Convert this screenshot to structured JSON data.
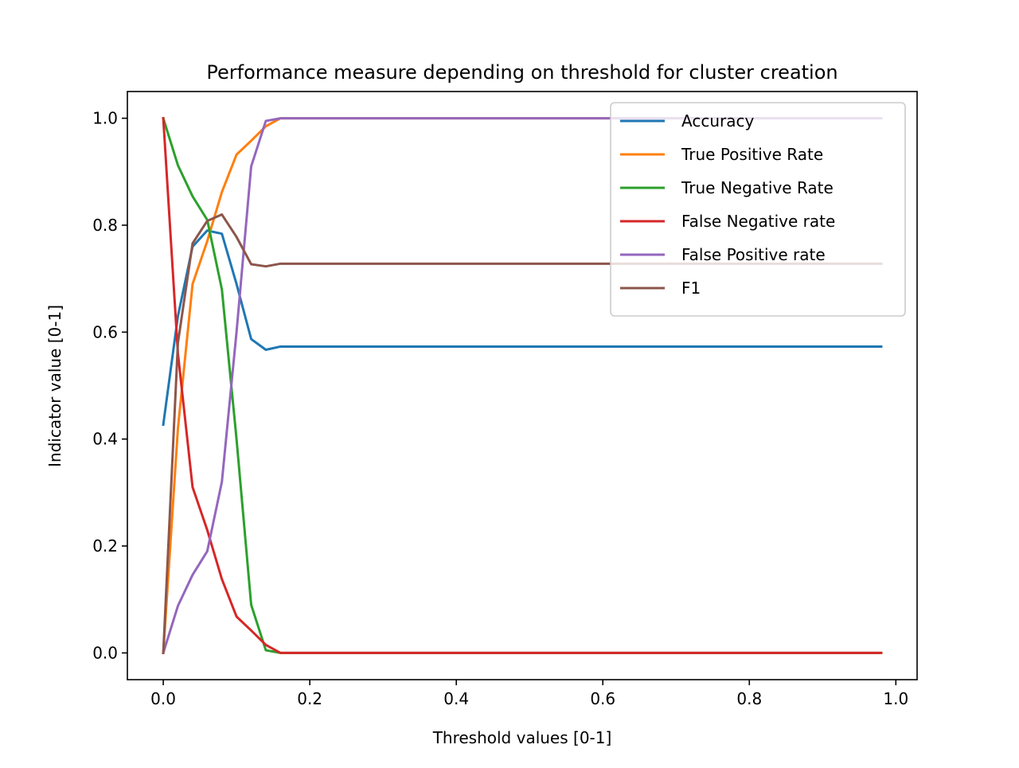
{
  "chart_data": {
    "type": "line",
    "title": "Performance measure depending on threshold for cluster creation",
    "xlabel": "Threshold values [0-1]",
    "ylabel": "Indicator value [0-1]",
    "xlim": [
      -0.049,
      1.029
    ],
    "ylim": [
      -0.05,
      1.05
    ],
    "xticks": [
      0.0,
      0.2,
      0.4,
      0.6,
      0.8,
      1.0
    ],
    "xtick_labels": [
      "0.0",
      "0.2",
      "0.4",
      "0.6",
      "0.8",
      "1.0"
    ],
    "yticks": [
      0.0,
      0.2,
      0.4,
      0.6,
      0.8,
      1.0
    ],
    "ytick_labels": [
      "0.0",
      "0.2",
      "0.4",
      "0.6",
      "0.8",
      "1.0"
    ],
    "grid": false,
    "legend_position": "upper right",
    "x": [
      0.0,
      0.02,
      0.04,
      0.06,
      0.08,
      0.1,
      0.12,
      0.14,
      0.16,
      0.98
    ],
    "series": [
      {
        "name": "Accuracy",
        "color": "#1f77b4",
        "values": [
          0.427,
          0.63,
          0.76,
          0.79,
          0.784,
          0.69,
          0.587,
          0.567,
          0.573,
          0.573
        ]
      },
      {
        "name": "True Positive Rate",
        "color": "#ff7f0e",
        "values": [
          0.0,
          0.42,
          0.69,
          0.77,
          0.862,
          0.932,
          0.958,
          0.985,
          1.0,
          1.0
        ]
      },
      {
        "name": "True Negative Rate",
        "color": "#2ca02c",
        "values": [
          1.0,
          0.912,
          0.854,
          0.81,
          0.68,
          0.4,
          0.09,
          0.005,
          0.0,
          0.0
        ]
      },
      {
        "name": "False Negative rate",
        "color": "#d62728",
        "values": [
          1.0,
          0.56,
          0.31,
          0.23,
          0.138,
          0.068,
          0.042,
          0.015,
          0.0,
          0.0
        ]
      },
      {
        "name": "False Positive rate",
        "color": "#9467bd",
        "values": [
          0.0,
          0.088,
          0.146,
          0.19,
          0.32,
          0.6,
          0.91,
          0.995,
          1.0,
          1.0
        ]
      },
      {
        "name": "F1",
        "color": "#8c564b",
        "values": [
          0.0,
          0.58,
          0.766,
          0.808,
          0.82,
          0.778,
          0.727,
          0.723,
          0.728,
          0.728
        ]
      }
    ]
  }
}
